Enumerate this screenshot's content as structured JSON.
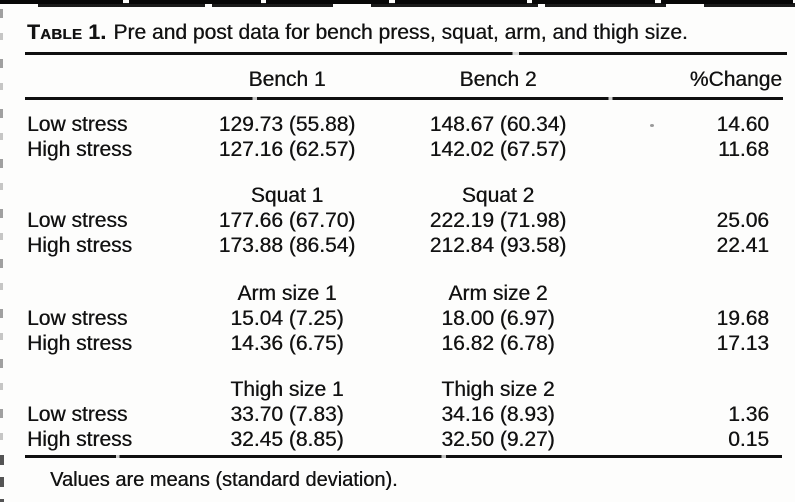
{
  "page": {
    "caption_label": "Table 1.",
    "caption_text": "Pre and post data for bench press, squat, arm, and thigh size.",
    "footnote": "Values are means (standard deviation)."
  },
  "table": {
    "columns": {
      "col1": "Bench 1",
      "col2": "Bench 2",
      "pct": "%Change"
    },
    "sections": [
      {
        "name": "bench",
        "rows": [
          {
            "label": "Low stress",
            "v1": "129.73 (55.88)",
            "v2": "148.67 (60.34)",
            "pct": "14.60"
          },
          {
            "label": "High stress",
            "v1": "127.16 (62.57)",
            "v2": "142.02 (67.57)",
            "pct": "11.68"
          }
        ]
      },
      {
        "name": "squat",
        "header1": "Squat 1",
        "header2": "Squat 2",
        "rows": [
          {
            "label": "Low stress",
            "v1": "177.66 (67.70)",
            "v2": "222.19 (71.98)",
            "pct": "25.06"
          },
          {
            "label": "High stress",
            "v1": "173.88 (86.54)",
            "v2": "212.84 (93.58)",
            "pct": "22.41"
          }
        ]
      },
      {
        "name": "arm",
        "header1": "Arm size 1",
        "header2": "Arm size 2",
        "rows": [
          {
            "label": "Low stress",
            "v1": "15.04 (7.25)",
            "v2": "18.00 (6.97)",
            "pct": "19.68"
          },
          {
            "label": "High stress",
            "v1": "14.36 (6.75)",
            "v2": "16.82 (6.78)",
            "pct": "17.13"
          }
        ]
      },
      {
        "name": "thigh",
        "header1": "Thigh size 1",
        "header2": "Thigh size 2",
        "rows": [
          {
            "label": "Low stress",
            "v1": "33.70 (7.83)",
            "v2": "34.16 (8.93)",
            "pct": "1.36"
          },
          {
            "label": "High stress",
            "v1": "32.45 (8.85)",
            "v2": "32.50 (9.27)",
            "pct": "0.15"
          }
        ]
      }
    ]
  },
  "colors": {
    "ink": "#121212",
    "paper": "#fdfdfc",
    "artifact_gray": "#9a9a9a"
  }
}
